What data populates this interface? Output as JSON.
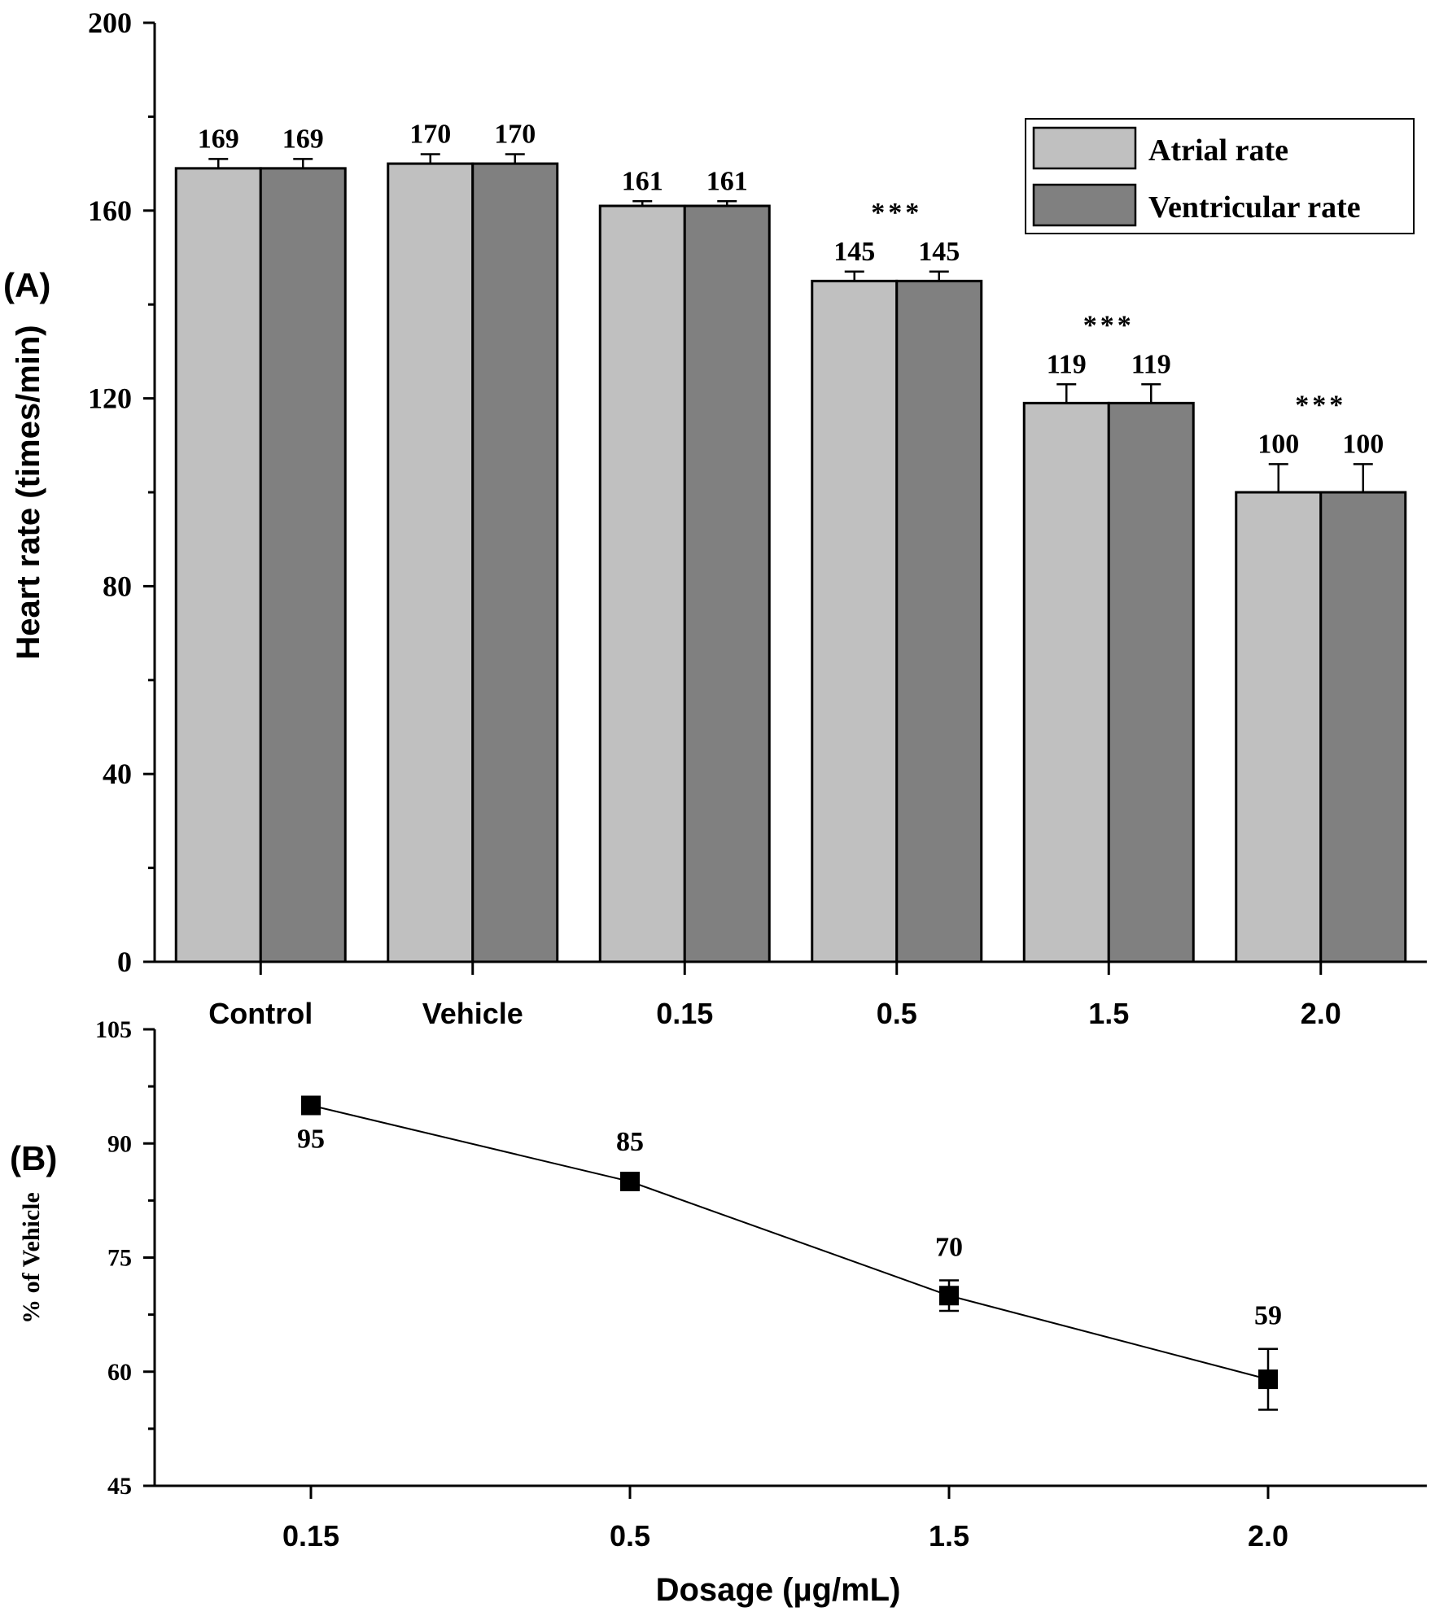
{
  "chart_data": [
    {
      "panel_label": "(A)",
      "type": "bar",
      "ylabel": "Heart rate (times/min)",
      "xlabel": "",
      "ylim": [
        0,
        200
      ],
      "yticks": [
        "0",
        "40",
        "80",
        "120",
        "160",
        "200"
      ],
      "categories": [
        "Control",
        "Vehicle",
        "0.15",
        "0.5",
        "1.5",
        "2.0"
      ],
      "series": [
        {
          "name": "Atrial rate",
          "color": "#c0c0c0",
          "values": [
            169,
            170,
            161,
            145,
            119,
            100
          ],
          "errors": [
            2,
            2,
            1,
            2,
            4,
            6
          ],
          "labels": [
            "169",
            "170",
            "161",
            "145",
            "119",
            "100"
          ]
        },
        {
          "name": "Ventricular rate",
          "color": "#808080",
          "values": [
            169,
            170,
            161,
            145,
            119,
            100
          ],
          "errors": [
            2,
            2,
            1,
            2,
            4,
            6
          ],
          "labels": [
            "169",
            "170",
            "161",
            "145",
            "119",
            "100"
          ]
        }
      ],
      "significance": [
        "",
        "",
        "",
        "***",
        "***",
        "***"
      ],
      "legend": {
        "position": "top-right",
        "entries": [
          "Atrial rate",
          "Ventricular rate"
        ]
      }
    },
    {
      "panel_label": "(B)",
      "type": "line",
      "ylabel": "% of Vehicle",
      "xlabel": "Dosage (µg/mL)",
      "ylim": [
        45,
        105
      ],
      "yticks": [
        "45",
        "60",
        "75",
        "90",
        "105"
      ],
      "categories": [
        "0.15",
        "0.5",
        "1.5",
        "2.0"
      ],
      "series": [
        {
          "name": "% of Vehicle",
          "marker": "square",
          "color": "#000000",
          "values": [
            95,
            85,
            70,
            59
          ],
          "errors": [
            0,
            0,
            2,
            4
          ],
          "labels": [
            "95",
            "85",
            "70",
            "59"
          ]
        }
      ]
    }
  ]
}
